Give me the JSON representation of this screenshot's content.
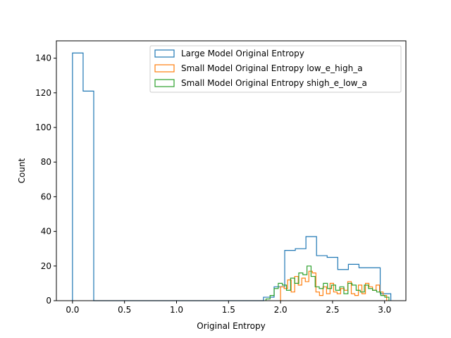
{
  "chart_data": {
    "type": "histogram",
    "title": "",
    "xlabel": "Original Entropy",
    "ylabel": "Count",
    "xlim": [
      -0.155,
      3.205
    ],
    "ylim": [
      0,
      150
    ],
    "xticks": [
      0.0,
      0.5,
      1.0,
      1.5,
      2.0,
      2.5,
      3.0
    ],
    "xtick_labels": [
      "0.0",
      "0.5",
      "1.0",
      "1.5",
      "2.0",
      "2.5",
      "3.0"
    ],
    "yticks": [
      0,
      20,
      40,
      60,
      80,
      100,
      120,
      140
    ],
    "ytick_labels": [
      "0",
      "20",
      "40",
      "60",
      "80",
      "100",
      "120",
      "140"
    ],
    "grid": false,
    "legend_position": "top-right",
    "series": [
      {
        "name": "Large Model Original Entropy",
        "color": "#1f77b4",
        "edges": [
          0.0,
          0.102,
          0.204,
          0.306,
          0.408,
          0.51,
          0.612,
          0.714,
          0.816,
          0.918,
          1.02,
          1.122,
          1.224,
          1.326,
          1.428,
          1.53,
          1.632,
          1.734,
          1.836,
          1.938,
          2.04,
          2.142,
          2.244,
          2.346,
          2.448,
          2.55,
          2.652,
          2.754,
          2.856,
          2.958,
          3.06
        ],
        "counts": [
          143,
          121,
          0,
          0,
          0,
          0,
          0,
          0,
          0,
          0,
          0,
          0,
          0,
          0,
          0,
          0,
          0,
          0,
          2,
          8,
          29,
          30,
          37,
          26,
          25,
          18,
          21,
          19,
          19,
          4
        ]
      },
      {
        "name": "Small Model Original Entropy low_e_high_a",
        "color": "#ff7f0e",
        "edges": [
          2.0,
          2.034,
          2.068,
          2.102,
          2.136,
          2.17,
          2.204,
          2.238,
          2.272,
          2.306,
          2.34,
          2.374,
          2.408,
          2.442,
          2.476,
          2.51,
          2.544,
          2.578,
          2.612,
          2.646,
          2.68,
          2.714,
          2.748,
          2.782,
          2.816,
          2.85,
          2.884,
          2.918,
          2.952,
          2.986,
          3.02
        ],
        "counts": [
          8,
          7,
          12,
          5,
          14,
          9,
          13,
          11,
          17,
          16,
          5,
          3,
          8,
          4,
          10,
          5,
          4,
          7,
          6,
          11,
          4,
          3,
          9,
          4,
          10,
          8,
          6,
          9,
          5,
          3
        ]
      },
      {
        "name": "Small Model Original Entropy shigh_e_low_a",
        "color": "#2ca02c",
        "edges": [
          1.86,
          1.8994,
          1.9388,
          1.9782,
          2.0176,
          2.057,
          2.0964,
          2.1358,
          2.1752,
          2.2146,
          2.254,
          2.2934,
          2.3328,
          2.3722,
          2.4116,
          2.451,
          2.4904,
          2.5298,
          2.5692,
          2.6086,
          2.648,
          2.6874,
          2.7268,
          2.7662,
          2.8056,
          2.845,
          2.8844,
          2.9238,
          2.9632,
          3.0026,
          3.042
        ],
        "counts": [
          1,
          3,
          7,
          10,
          9,
          6,
          13,
          10,
          16,
          15,
          20,
          14,
          8,
          7,
          10,
          7,
          9,
          6,
          8,
          4,
          10,
          9,
          6,
          5,
          9,
          7,
          6,
          5,
          3,
          2
        ]
      }
    ]
  }
}
